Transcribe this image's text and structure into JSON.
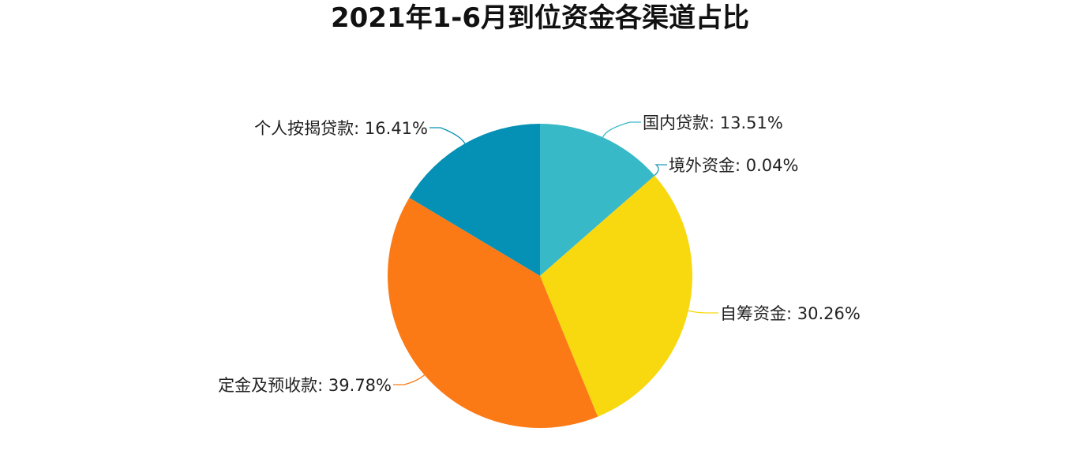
{
  "chart_data": {
    "type": "pie",
    "title": "2021年1-6月到位资金各渠道占比",
    "slices": [
      {
        "name": "国内贷款",
        "value": 13.51,
        "label": "国内贷款: 13.51%",
        "color": "#37b9c8"
      },
      {
        "name": "境外资金",
        "value": 0.04,
        "label": "境外资金: 0.04%",
        "color": "#1f9bb3"
      },
      {
        "name": "自筹资金",
        "value": 30.26,
        "label": "自筹资金: 30.26%",
        "color": "#f8d80f"
      },
      {
        "name": "定金及预收款",
        "value": 39.78,
        "label": "定金及预收款: 39.78%",
        "color": "#fb7a16"
      },
      {
        "name": "个人按揭贷款",
        "value": 16.41,
        "label": "个人按揭贷款: 16.41%",
        "color": "#0491b5"
      }
    ],
    "start_angle": "12 o'clock",
    "direction": "clockwise",
    "legend": "none"
  }
}
